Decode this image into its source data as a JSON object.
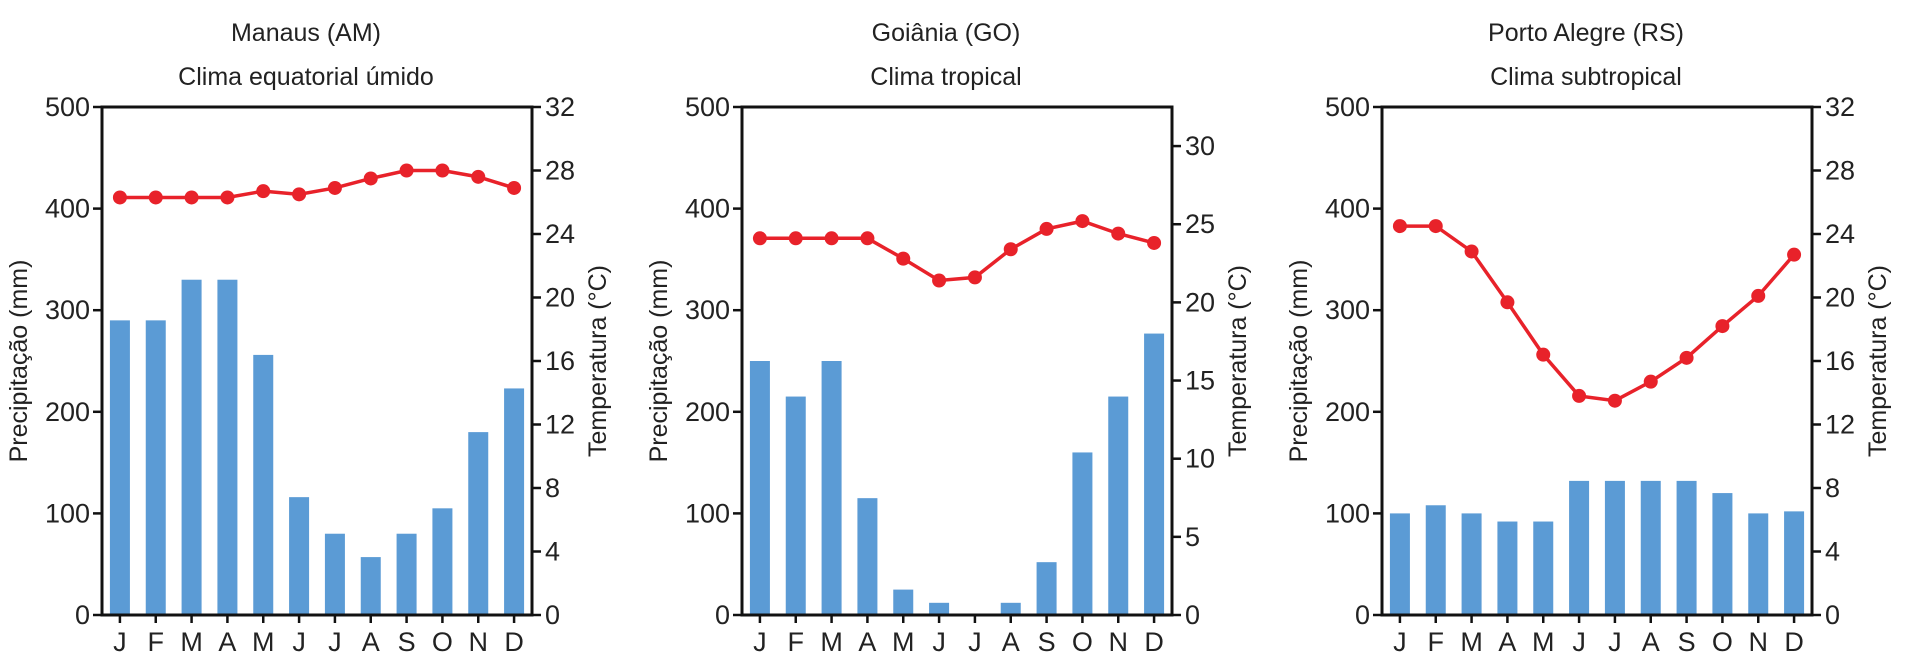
{
  "colors": {
    "bar": "#5b9bd5",
    "line": "#e8222a",
    "axis": "#111111",
    "text": "#222222"
  },
  "chart_data": [
    {
      "type": "bar+line",
      "title": "Manaus (AM)",
      "subtitle": "Clima equatorial úmido",
      "categories": [
        "J",
        "F",
        "M",
        "A",
        "M",
        "J",
        "J",
        "A",
        "S",
        "O",
        "N",
        "D"
      ],
      "ylabel": "Precipitação (mm)",
      "ylabel_right": "Temperatura (°C)",
      "ylim": [
        0,
        500
      ],
      "ylim_right": [
        0,
        32
      ],
      "yticks": [
        0,
        100,
        200,
        300,
        400,
        500
      ],
      "yticks_right": [
        0,
        4,
        8,
        12,
        16,
        20,
        24,
        28,
        32
      ],
      "precipitation": [
        290,
        290,
        330,
        330,
        256,
        116,
        80,
        57,
        80,
        105,
        180,
        223
      ],
      "temperature": [
        26.3,
        26.3,
        26.3,
        26.3,
        26.7,
        26.5,
        26.9,
        27.5,
        28.0,
        28.0,
        27.6,
        26.9
      ]
    },
    {
      "type": "bar+line",
      "title": "Goiânia (GO)",
      "subtitle": "Clima tropical",
      "categories": [
        "J",
        "F",
        "M",
        "A",
        "M",
        "J",
        "J",
        "A",
        "S",
        "O",
        "N",
        "D"
      ],
      "ylabel": "Precipitação (mm)",
      "ylabel_right": "Temperatura (°C)",
      "ylim": [
        0,
        500
      ],
      "ylim_right": [
        0,
        32.5
      ],
      "yticks": [
        0,
        100,
        200,
        300,
        400,
        500
      ],
      "yticks_right": [
        0,
        5,
        10,
        15,
        20,
        25,
        30
      ],
      "precipitation": [
        250,
        215,
        250,
        115,
        25,
        12,
        0,
        12,
        52,
        160,
        215,
        277
      ],
      "temperature": [
        24.1,
        24.1,
        24.1,
        24.1,
        22.8,
        21.4,
        21.6,
        23.4,
        24.7,
        25.2,
        24.4,
        23.8
      ]
    },
    {
      "type": "bar+line",
      "title": "Porto Alegre (RS)",
      "subtitle": "Clima subtropical",
      "categories": [
        "J",
        "F",
        "M",
        "A",
        "M",
        "J",
        "J",
        "A",
        "S",
        "O",
        "N",
        "D"
      ],
      "ylabel": "Precipitação (mm)",
      "ylabel_right": "Temperatura (°C)",
      "ylim": [
        0,
        500
      ],
      "ylim_right": [
        0,
        32
      ],
      "yticks": [
        0,
        100,
        200,
        300,
        400,
        500
      ],
      "yticks_right": [
        0,
        4,
        8,
        12,
        16,
        20,
        24,
        28,
        32
      ],
      "precipitation": [
        100,
        108,
        100,
        92,
        92,
        132,
        132,
        132,
        132,
        120,
        100,
        102
      ],
      "temperature": [
        24.5,
        24.5,
        22.9,
        19.7,
        16.4,
        13.8,
        13.5,
        14.7,
        16.2,
        18.2,
        20.1,
        22.7
      ]
    }
  ]
}
